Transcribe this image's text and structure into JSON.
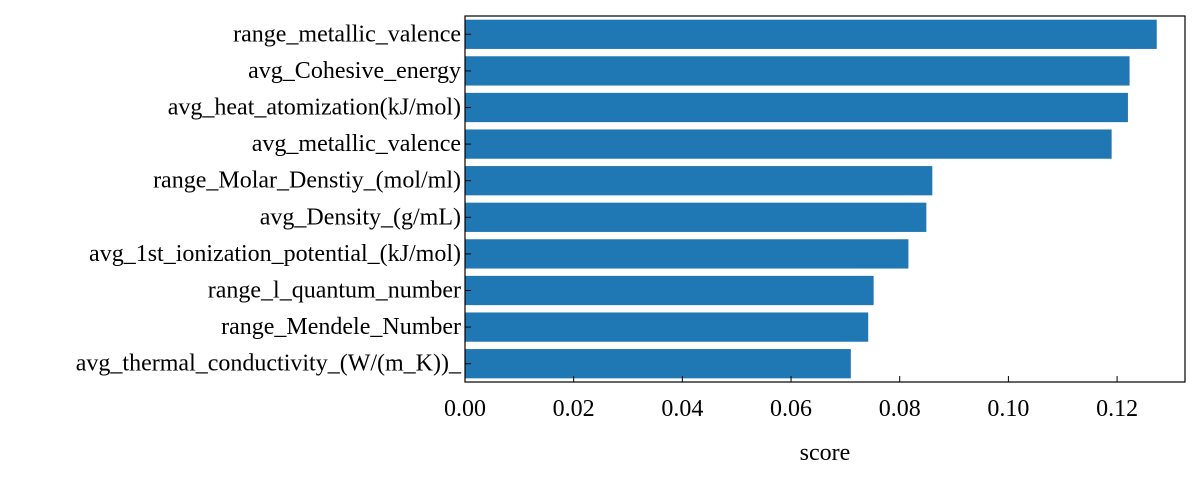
{
  "chart_data": {
    "type": "bar",
    "orientation": "horizontal",
    "title": "",
    "xlabel": "score",
    "ylabel": "",
    "xlim": [
      0.0,
      0.1325
    ],
    "xticks": [
      0.0,
      0.02,
      0.04,
      0.06,
      0.08,
      0.1,
      0.12
    ],
    "xtick_labels": [
      "0.00",
      "0.02",
      "0.04",
      "0.06",
      "0.08",
      "0.10",
      "0.12"
    ],
    "grid": false,
    "legend": "none",
    "bar_color": "#1f77b4",
    "categories": [
      "range_metallic_valence",
      "avg_Cohesive_energy",
      "avg_heat_atomization(kJ/mol)",
      "avg_metallic_valence",
      "range_Molar_Denstiy_(mol/ml)",
      "avg_Density_(g/mL)",
      "avg_1st_ionization_potential_(kJ/mol)",
      "range_l_quantum_number",
      "range_Mendele_Number",
      "avg_thermal_conductivity_(W/(m_K))_"
    ],
    "values": [
      0.1273,
      0.1223,
      0.122,
      0.119,
      0.086,
      0.0849,
      0.0816,
      0.0752,
      0.0742,
      0.071
    ]
  }
}
